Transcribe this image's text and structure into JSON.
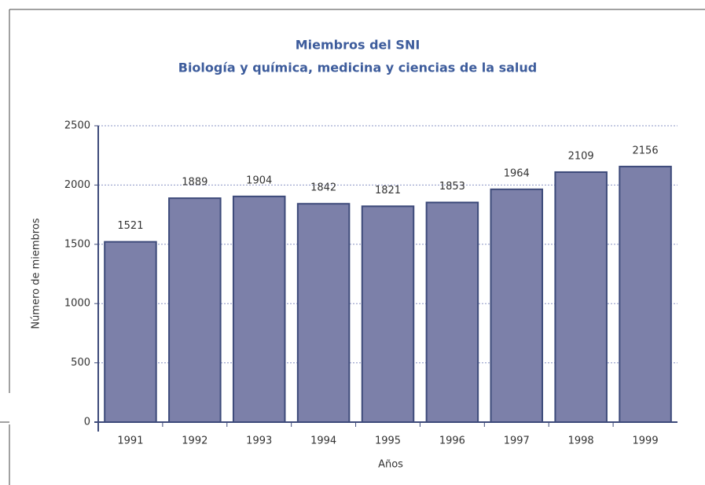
{
  "chart_data": {
    "type": "bar",
    "title": "Miembros del SNI",
    "subtitle": "Biología y química, medicina y ciencias de la salud",
    "x_label": "Años",
    "y_label": "Número de miembros",
    "categories": [
      "1991",
      "1992",
      "1993",
      "1994",
      "1995",
      "1996",
      "1997",
      "1998",
      "1999"
    ],
    "values": [
      1521,
      1889,
      1904,
      1842,
      1821,
      1853,
      1964,
      2109,
      2156
    ],
    "color": "#7c80a9",
    "ylim": [
      0,
      2500
    ],
    "yticks": [
      0,
      500,
      1000,
      1500,
      2000,
      2500
    ],
    "grid": true
  }
}
